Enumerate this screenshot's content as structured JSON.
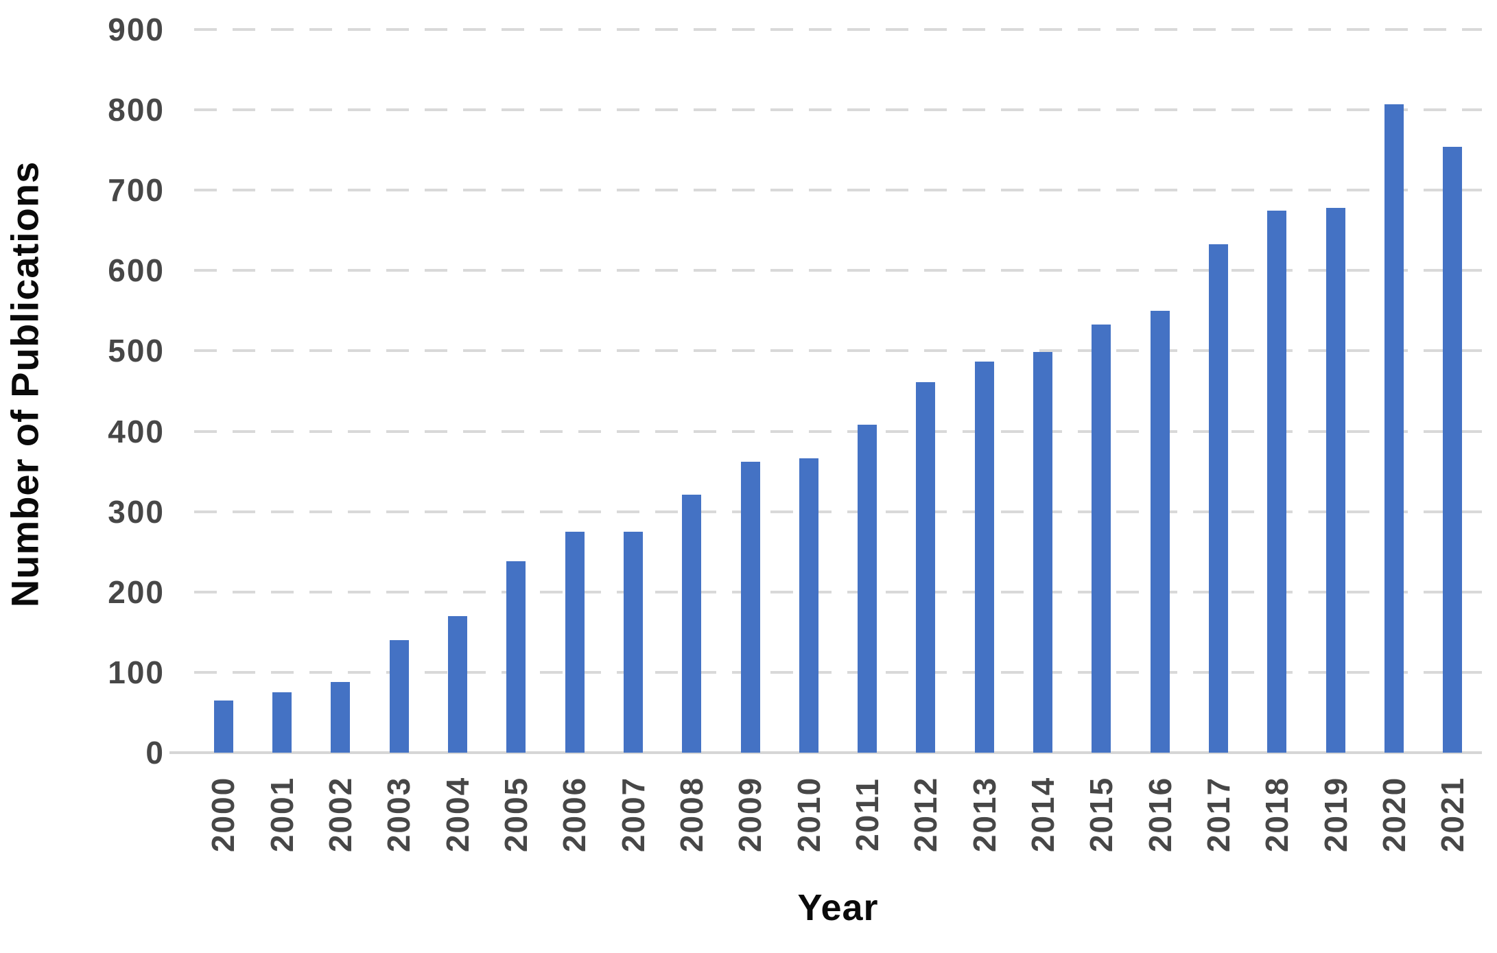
{
  "chart_data": {
    "type": "bar",
    "title": "",
    "xlabel": "Year",
    "ylabel": "Number of Publications",
    "categories": [
      "2000",
      "2001",
      "2002",
      "2003",
      "2004",
      "2005",
      "2006",
      "2007",
      "2008",
      "2009",
      "2010",
      "2011",
      "2012",
      "2013",
      "2014",
      "2015",
      "2016",
      "2017",
      "2018",
      "2019",
      "2020",
      "2021"
    ],
    "values": [
      65,
      75,
      88,
      140,
      170,
      238,
      275,
      275,
      321,
      362,
      366,
      408,
      461,
      487,
      499,
      533,
      550,
      633,
      675,
      678,
      807,
      754
    ],
    "ylim": [
      0,
      900
    ],
    "yticks": [
      0,
      100,
      200,
      300,
      400,
      500,
      600,
      700,
      800,
      900
    ],
    "grid": "horizontal-dashed",
    "legend": "none",
    "colors": {
      "bar": "#4472C4",
      "gridline": "#D9D9D9",
      "baseline": "#D6D6D6",
      "tick_label": "#474747",
      "axis_title": "#0A0A0A",
      "background": "#FFFFFF"
    }
  }
}
